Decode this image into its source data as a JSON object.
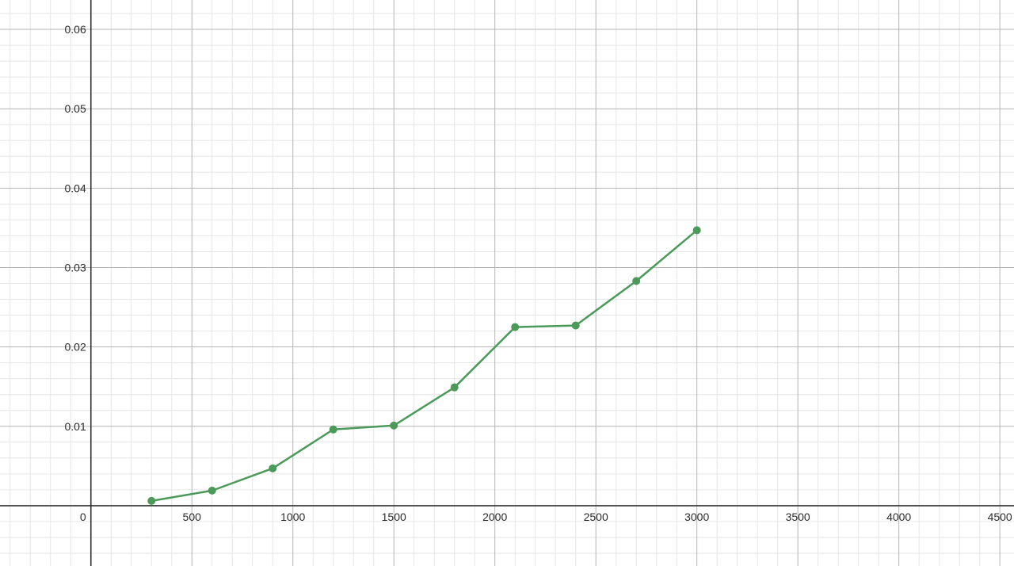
{
  "chart_data": {
    "type": "line",
    "title": "",
    "xlabel": "",
    "ylabel": "",
    "xlim": [
      -450,
      4570
    ],
    "ylim": [
      -0.0076,
      0.0637
    ],
    "grid": true,
    "x_ticks": [
      {
        "value": 0,
        "label": "0"
      },
      {
        "value": 500,
        "label": "500"
      },
      {
        "value": 1000,
        "label": "1000"
      },
      {
        "value": 1500,
        "label": "1500"
      },
      {
        "value": 2000,
        "label": "2000"
      },
      {
        "value": 2500,
        "label": "2500"
      },
      {
        "value": 3000,
        "label": "3000"
      },
      {
        "value": 3500,
        "label": "3500"
      },
      {
        "value": 4000,
        "label": "4000"
      },
      {
        "value": 4500,
        "label": "4500"
      }
    ],
    "y_ticks": [
      {
        "value": 0.01,
        "label": "0.01"
      },
      {
        "value": 0.02,
        "label": "0.02"
      },
      {
        "value": 0.03,
        "label": "0.03"
      },
      {
        "value": 0.04,
        "label": "0.04"
      },
      {
        "value": 0.05,
        "label": "0.05"
      },
      {
        "value": 0.06,
        "label": "0.06"
      }
    ],
    "series": [
      {
        "color": "#4c9a5a",
        "x": [
          300,
          600,
          900,
          1200,
          1500,
          1800,
          2100,
          2400,
          2700,
          3000
        ],
        "y": [
          0.0006,
          0.0019,
          0.0047,
          0.0096,
          0.0101,
          0.0149,
          0.0225,
          0.0227,
          0.0283,
          0.0347
        ]
      }
    ]
  }
}
